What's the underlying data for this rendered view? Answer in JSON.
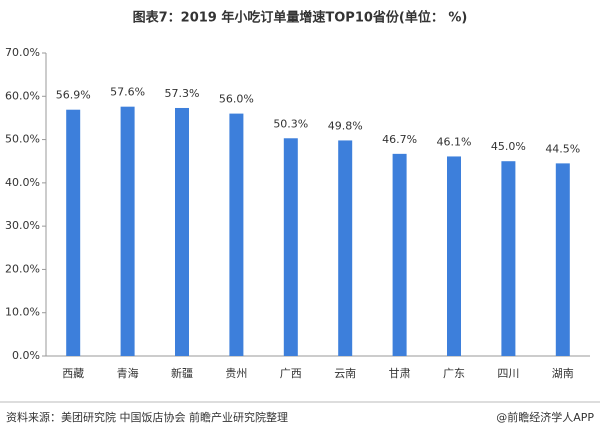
{
  "chart_data": {
    "type": "bar",
    "title": "图表7：2019 年小吃订单量增速TOP10省份(单位： %)",
    "categories": [
      "西藏",
      "青海",
      "新疆",
      "贵州",
      "广西",
      "云南",
      "甘肃",
      "广东",
      "四川",
      "湖南"
    ],
    "values": [
      56.9,
      57.6,
      57.3,
      56.0,
      50.3,
      49.8,
      46.7,
      46.1,
      45.0,
      44.5
    ],
    "value_labels": [
      "56.9%",
      "57.6%",
      "57.3%",
      "56.0%",
      "50.3%",
      "49.8%",
      "46.7%",
      "46.1%",
      "45.0%",
      "44.5%"
    ],
    "color": "#3d7fdb",
    "ylim": [
      0,
      70
    ],
    "yticks": [
      {
        "value": 0,
        "label": "0.0%"
      },
      {
        "value": 10,
        "label": "10.0%"
      },
      {
        "value": 20,
        "label": "20.0%"
      },
      {
        "value": 30,
        "label": "30.0%"
      },
      {
        "value": 40,
        "label": "40.0%"
      },
      {
        "value": 50,
        "label": "50.0%"
      },
      {
        "value": 60,
        "label": "60.0%"
      },
      {
        "value": 70,
        "label": "70.0%"
      }
    ],
    "grid": false,
    "source": "资料来源：美团研究院 中国饭店协会  前瞻产业研究院整理",
    "credit": "@前瞻经济学人APP"
  }
}
